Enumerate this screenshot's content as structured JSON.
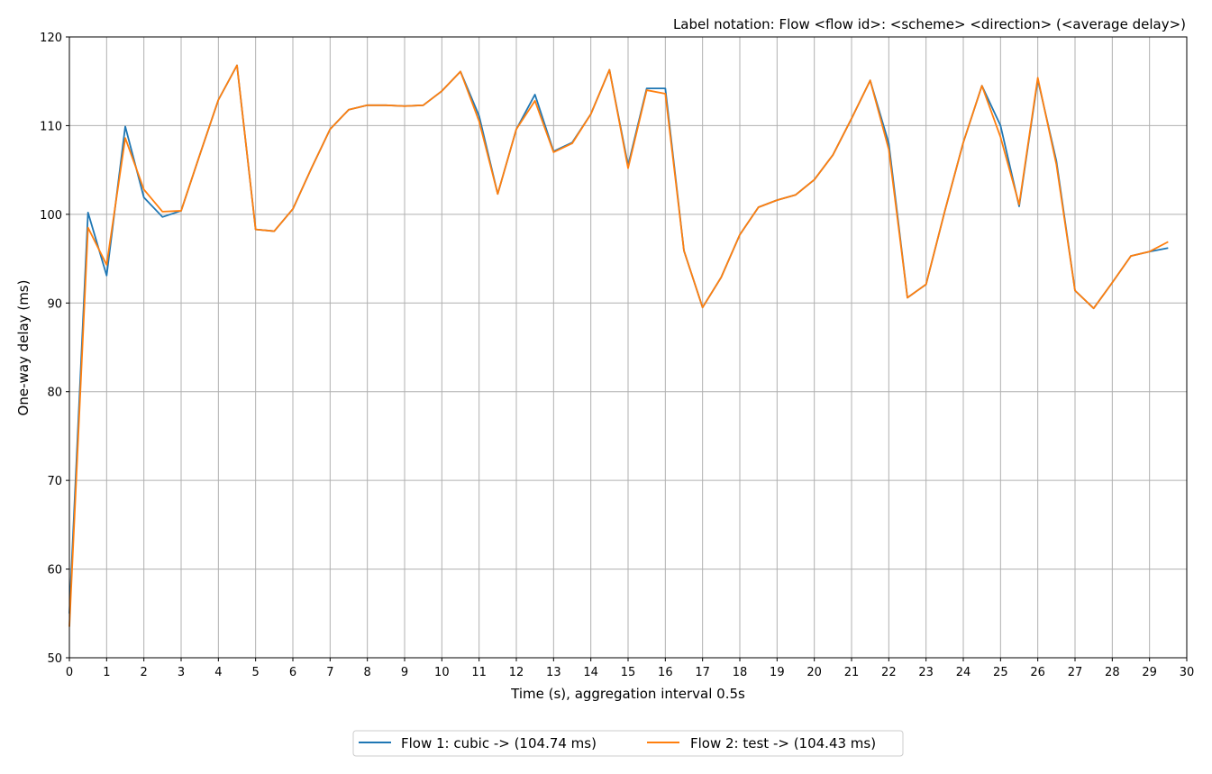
{
  "chart_data": {
    "type": "line",
    "title": "Label notation: Flow <flow id>: <scheme> <direction> (<average delay>)",
    "xlabel": "Time (s), aggregation interval 0.5s",
    "ylabel": "One-way delay (ms)",
    "xlim": [
      0,
      30
    ],
    "ylim": [
      50,
      120
    ],
    "x_ticks": [
      0,
      1,
      2,
      3,
      4,
      5,
      6,
      7,
      8,
      9,
      10,
      11,
      12,
      13,
      14,
      15,
      16,
      17,
      18,
      19,
      20,
      21,
      22,
      23,
      24,
      25,
      26,
      27,
      28,
      29,
      30
    ],
    "y_ticks": [
      50,
      60,
      70,
      80,
      90,
      100,
      110,
      120
    ],
    "grid": true,
    "legend_position": "bottom-center",
    "x": [
      0,
      0.5,
      1,
      1.5,
      2,
      2.5,
      3,
      3.5,
      4,
      4.5,
      5,
      5.5,
      6,
      6.5,
      7,
      7.5,
      8,
      8.5,
      9,
      9.5,
      10,
      10.5,
      11,
      11.5,
      12,
      12.5,
      13,
      13.5,
      14,
      14.5,
      15,
      15.5,
      16,
      16.5,
      17,
      17.5,
      18,
      18.5,
      19,
      19.5,
      20,
      20.5,
      21,
      21.5,
      22,
      22.5,
      23,
      23.5,
      24,
      24.5,
      25,
      25.5,
      26,
      26.5,
      27,
      27.5,
      28,
      28.5,
      29,
      29.5
    ],
    "series": [
      {
        "name": "Flow 1: cubic -> (104.74 ms)",
        "color": "#1f77b4",
        "values": [
          55,
          100.2,
          93.1,
          109.9,
          101.9,
          99.7,
          100.4,
          106.7,
          112.9,
          116.8,
          98.3,
          98.1,
          100.6,
          105.2,
          109.6,
          111.8,
          112.3,
          112.3,
          112.2,
          112.3,
          113.9,
          116.1,
          111.1,
          102.3,
          109.6,
          113.5,
          107.1,
          108.1,
          111.3,
          116.3,
          105.5,
          114.2,
          114.2,
          95.9,
          89.5,
          92.9,
          97.7,
          100.8,
          101.6,
          102.2,
          103.9,
          106.7,
          110.8,
          115.1,
          108.0,
          90.6,
          92.1,
          100.3,
          108.1,
          114.5,
          110.0,
          100.9,
          115.2,
          106.0,
          91.4,
          89.4,
          92.3,
          95.3,
          95.8,
          96.2
        ]
      },
      {
        "name": "Flow 2: test -> (104.43 ms)",
        "color": "#ff7f0e",
        "values": [
          53.5,
          98.5,
          94.3,
          108.6,
          102.8,
          100.3,
          100.4,
          106.7,
          112.9,
          116.8,
          98.3,
          98.1,
          100.6,
          105.2,
          109.6,
          111.8,
          112.3,
          112.3,
          112.2,
          112.3,
          113.9,
          116.1,
          110.5,
          102.3,
          109.6,
          112.8,
          107.0,
          108.0,
          111.3,
          116.3,
          105.2,
          114.0,
          113.6,
          95.9,
          89.5,
          92.9,
          97.7,
          100.8,
          101.6,
          102.2,
          103.9,
          106.7,
          110.8,
          115.1,
          107.3,
          90.6,
          92.1,
          100.3,
          108.1,
          114.5,
          108.7,
          101.1,
          115.4,
          105.6,
          91.4,
          89.4,
          92.3,
          95.3,
          95.8,
          96.9
        ]
      }
    ]
  }
}
